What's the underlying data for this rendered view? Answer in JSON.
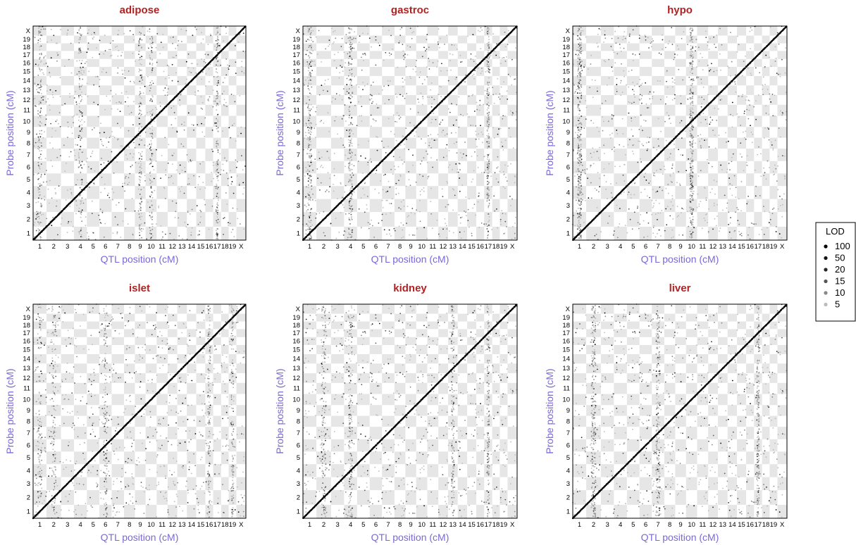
{
  "colors": {
    "title": "#B22222",
    "axis_label": "#7B68D8",
    "stripe": "#E6E6E6",
    "diagonal": "#000000"
  },
  "chart_data": [
    {
      "type": "scatter",
      "title": "adipose",
      "xlabel": "QTL position (cM)",
      "ylabel": "Probe position (cM)",
      "hotspots": [
        "1",
        "4",
        "9",
        "10",
        "17"
      ],
      "diagonal": "cis"
    },
    {
      "type": "scatter",
      "title": "gastroc",
      "xlabel": "QTL position (cM)",
      "ylabel": "Probe position (cM)",
      "hotspots": [
        "1",
        "4",
        "17"
      ],
      "diagonal": "cis"
    },
    {
      "type": "scatter",
      "title": "hypo",
      "xlabel": "QTL position (cM)",
      "ylabel": "Probe position (cM)",
      "hotspots": [
        "1",
        "10"
      ],
      "diagonal": "cis"
    },
    {
      "type": "scatter",
      "title": "islet",
      "xlabel": "QTL position (cM)",
      "ylabel": "Probe position (cM)",
      "hotspots": [
        "2",
        "6",
        "1",
        "16",
        "19"
      ],
      "diagonal": "cis"
    },
    {
      "type": "scatter",
      "title": "kidney",
      "xlabel": "QTL position (cM)",
      "ylabel": "Probe position (cM)",
      "hotspots": [
        "2",
        "4",
        "13",
        "17"
      ],
      "diagonal": "cis"
    },
    {
      "type": "scatter",
      "title": "liver",
      "xlabel": "QTL position (cM)",
      "ylabel": "Probe position (cM)",
      "hotspots": [
        "2",
        "7",
        "17"
      ],
      "diagonal": "cis"
    }
  ],
  "chromosomes": [
    "1",
    "2",
    "3",
    "4",
    "5",
    "6",
    "7",
    "8",
    "9",
    "10",
    "11",
    "12",
    "13",
    "14",
    "15",
    "16",
    "17",
    "18",
    "19",
    "X"
  ],
  "chrom_lengths": [
    97,
    106,
    94,
    94,
    91,
    89,
    90,
    79,
    78,
    80,
    80,
    70,
    70,
    68,
    66,
    57,
    58,
    55,
    56,
    69
  ],
  "legend": {
    "title": "LOD",
    "items": [
      {
        "label": "100",
        "color": "#000000"
      },
      {
        "label": "50",
        "color": "#141414"
      },
      {
        "label": "20",
        "color": "#262626"
      },
      {
        "label": "15",
        "color": "#555555"
      },
      {
        "label": "10",
        "color": "#888888"
      },
      {
        "label": "5",
        "color": "#BBBBBB"
      }
    ]
  }
}
